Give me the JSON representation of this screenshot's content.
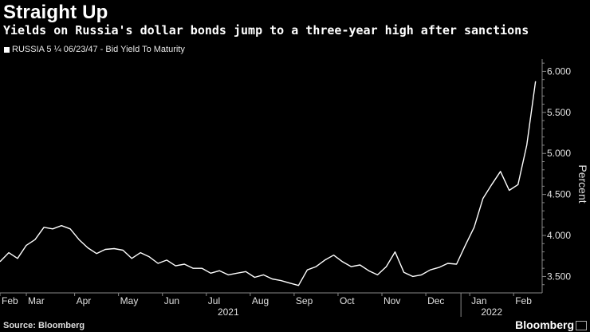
{
  "title": "Straight Up",
  "subtitle": "Yields on Russia's dollar bonds jump to a three-year high after sanctions",
  "legend_label": "RUSSIA 5 ¼ 06/23/47 - Bid Yield To Maturity",
  "source": "Source: Bloomberg",
  "brand": "Bloomberg",
  "colors": {
    "background": "#000000",
    "line": "#ffffff",
    "axis": "#888888",
    "tick_text": "#e0e0e0"
  },
  "chart_data": {
    "type": "line",
    "title": "Straight Up",
    "series": [
      {
        "name": "RUSSIA 5 ¼ 06/23/47 - Bid Yield To Maturity",
        "x": [
          0.0,
          0.2,
          0.4,
          0.6,
          0.8,
          1.0,
          1.2,
          1.4,
          1.6,
          1.8,
          2.0,
          2.2,
          2.4,
          2.6,
          2.8,
          3.0,
          3.2,
          3.4,
          3.6,
          3.8,
          4.0,
          4.2,
          4.4,
          4.6,
          4.8,
          5.0,
          5.2,
          5.4,
          5.6,
          5.8,
          6.0,
          6.2,
          6.4,
          6.6,
          6.8,
          7.0,
          7.2,
          7.4,
          7.6,
          7.8,
          8.0,
          8.2,
          8.4,
          8.6,
          8.8,
          9.0,
          9.2,
          9.4,
          9.6,
          9.8,
          10.0,
          10.2,
          10.4,
          10.6,
          10.8,
          11.0,
          11.2,
          11.4,
          11.6,
          11.8,
          12.0,
          12.2
        ],
        "values": [
          3.68,
          3.79,
          3.72,
          3.88,
          3.95,
          4.1,
          4.08,
          4.12,
          4.08,
          3.95,
          3.85,
          3.78,
          3.83,
          3.84,
          3.82,
          3.72,
          3.79,
          3.74,
          3.66,
          3.7,
          3.63,
          3.65,
          3.6,
          3.6,
          3.54,
          3.57,
          3.52,
          3.54,
          3.56,
          3.49,
          3.52,
          3.47,
          3.45,
          3.42,
          3.39,
          3.58,
          3.62,
          3.7,
          3.76,
          3.68,
          3.62,
          3.64,
          3.57,
          3.52,
          3.62,
          3.8,
          3.55,
          3.5,
          3.52,
          3.58,
          3.61,
          3.66,
          3.65,
          3.88,
          4.1,
          4.45,
          4.62,
          4.78,
          4.55,
          4.62,
          5.1,
          5.88
        ]
      }
    ],
    "xlabel": "",
    "ylabel": "Percent",
    "x_tick_labels": [
      "Feb",
      "Mar",
      "Apr",
      "May",
      "Jun",
      "Jul",
      "Aug",
      "Sep",
      "Oct",
      "Nov",
      "Dec",
      "Jan",
      "Feb"
    ],
    "x_tick_positions": [
      0.0,
      0.6,
      1.7,
      2.7,
      3.7,
      4.7,
      5.7,
      6.7,
      7.7,
      8.7,
      9.7,
      10.7,
      11.7
    ],
    "year_labels": [
      {
        "label": "2021",
        "position": 5.2
      },
      {
        "label": "2022",
        "position": 11.2
      }
    ],
    "year_separator": 10.5,
    "y_tick_labels": [
      "3.500",
      "4.000",
      "4.500",
      "5.000",
      "5.500",
      "6.000"
    ],
    "y_tick_values": [
      3.5,
      4.0,
      4.5,
      5.0,
      5.5,
      6.0
    ],
    "xlim": [
      0,
      12.35
    ],
    "ylim": [
      3.3,
      6.15
    ],
    "grid": false,
    "legend": "top-left"
  }
}
